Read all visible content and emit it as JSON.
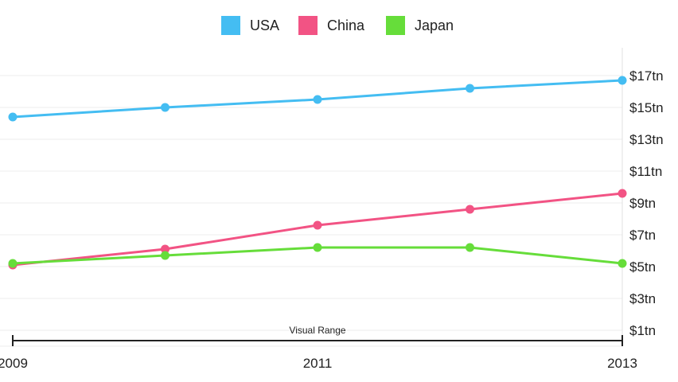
{
  "chart_data": {
    "type": "line",
    "x": [
      2009,
      2010,
      2011,
      2012,
      2013
    ],
    "series": [
      {
        "name": "USA",
        "color": "#44bdf2",
        "values": [
          14.4,
          15.0,
          15.5,
          16.2,
          16.7
        ]
      },
      {
        "name": "China",
        "color": "#f25384",
        "values": [
          5.1,
          6.1,
          7.6,
          8.6,
          9.6
        ]
      },
      {
        "name": "Japan",
        "color": "#66dd3a",
        "values": [
          5.2,
          5.7,
          6.2,
          6.2,
          5.2
        ]
      }
    ],
    "y_ticks": [
      1,
      3,
      5,
      7,
      9,
      11,
      13,
      15,
      17
    ],
    "y_tick_labels": [
      "$1tn",
      "$3tn",
      "$5tn",
      "$7tn",
      "$9tn",
      "$11tn",
      "$13tn",
      "$15tn",
      "$17tn"
    ],
    "x_ticks": [
      2009,
      2011,
      2013
    ],
    "x_tick_labels": [
      "2009",
      "2011",
      "2013"
    ],
    "ylim": [
      0,
      18
    ],
    "xlim": [
      2009,
      2013
    ],
    "visual_range_label": "Visual Range",
    "legend_position": "top-center",
    "grid": true
  }
}
